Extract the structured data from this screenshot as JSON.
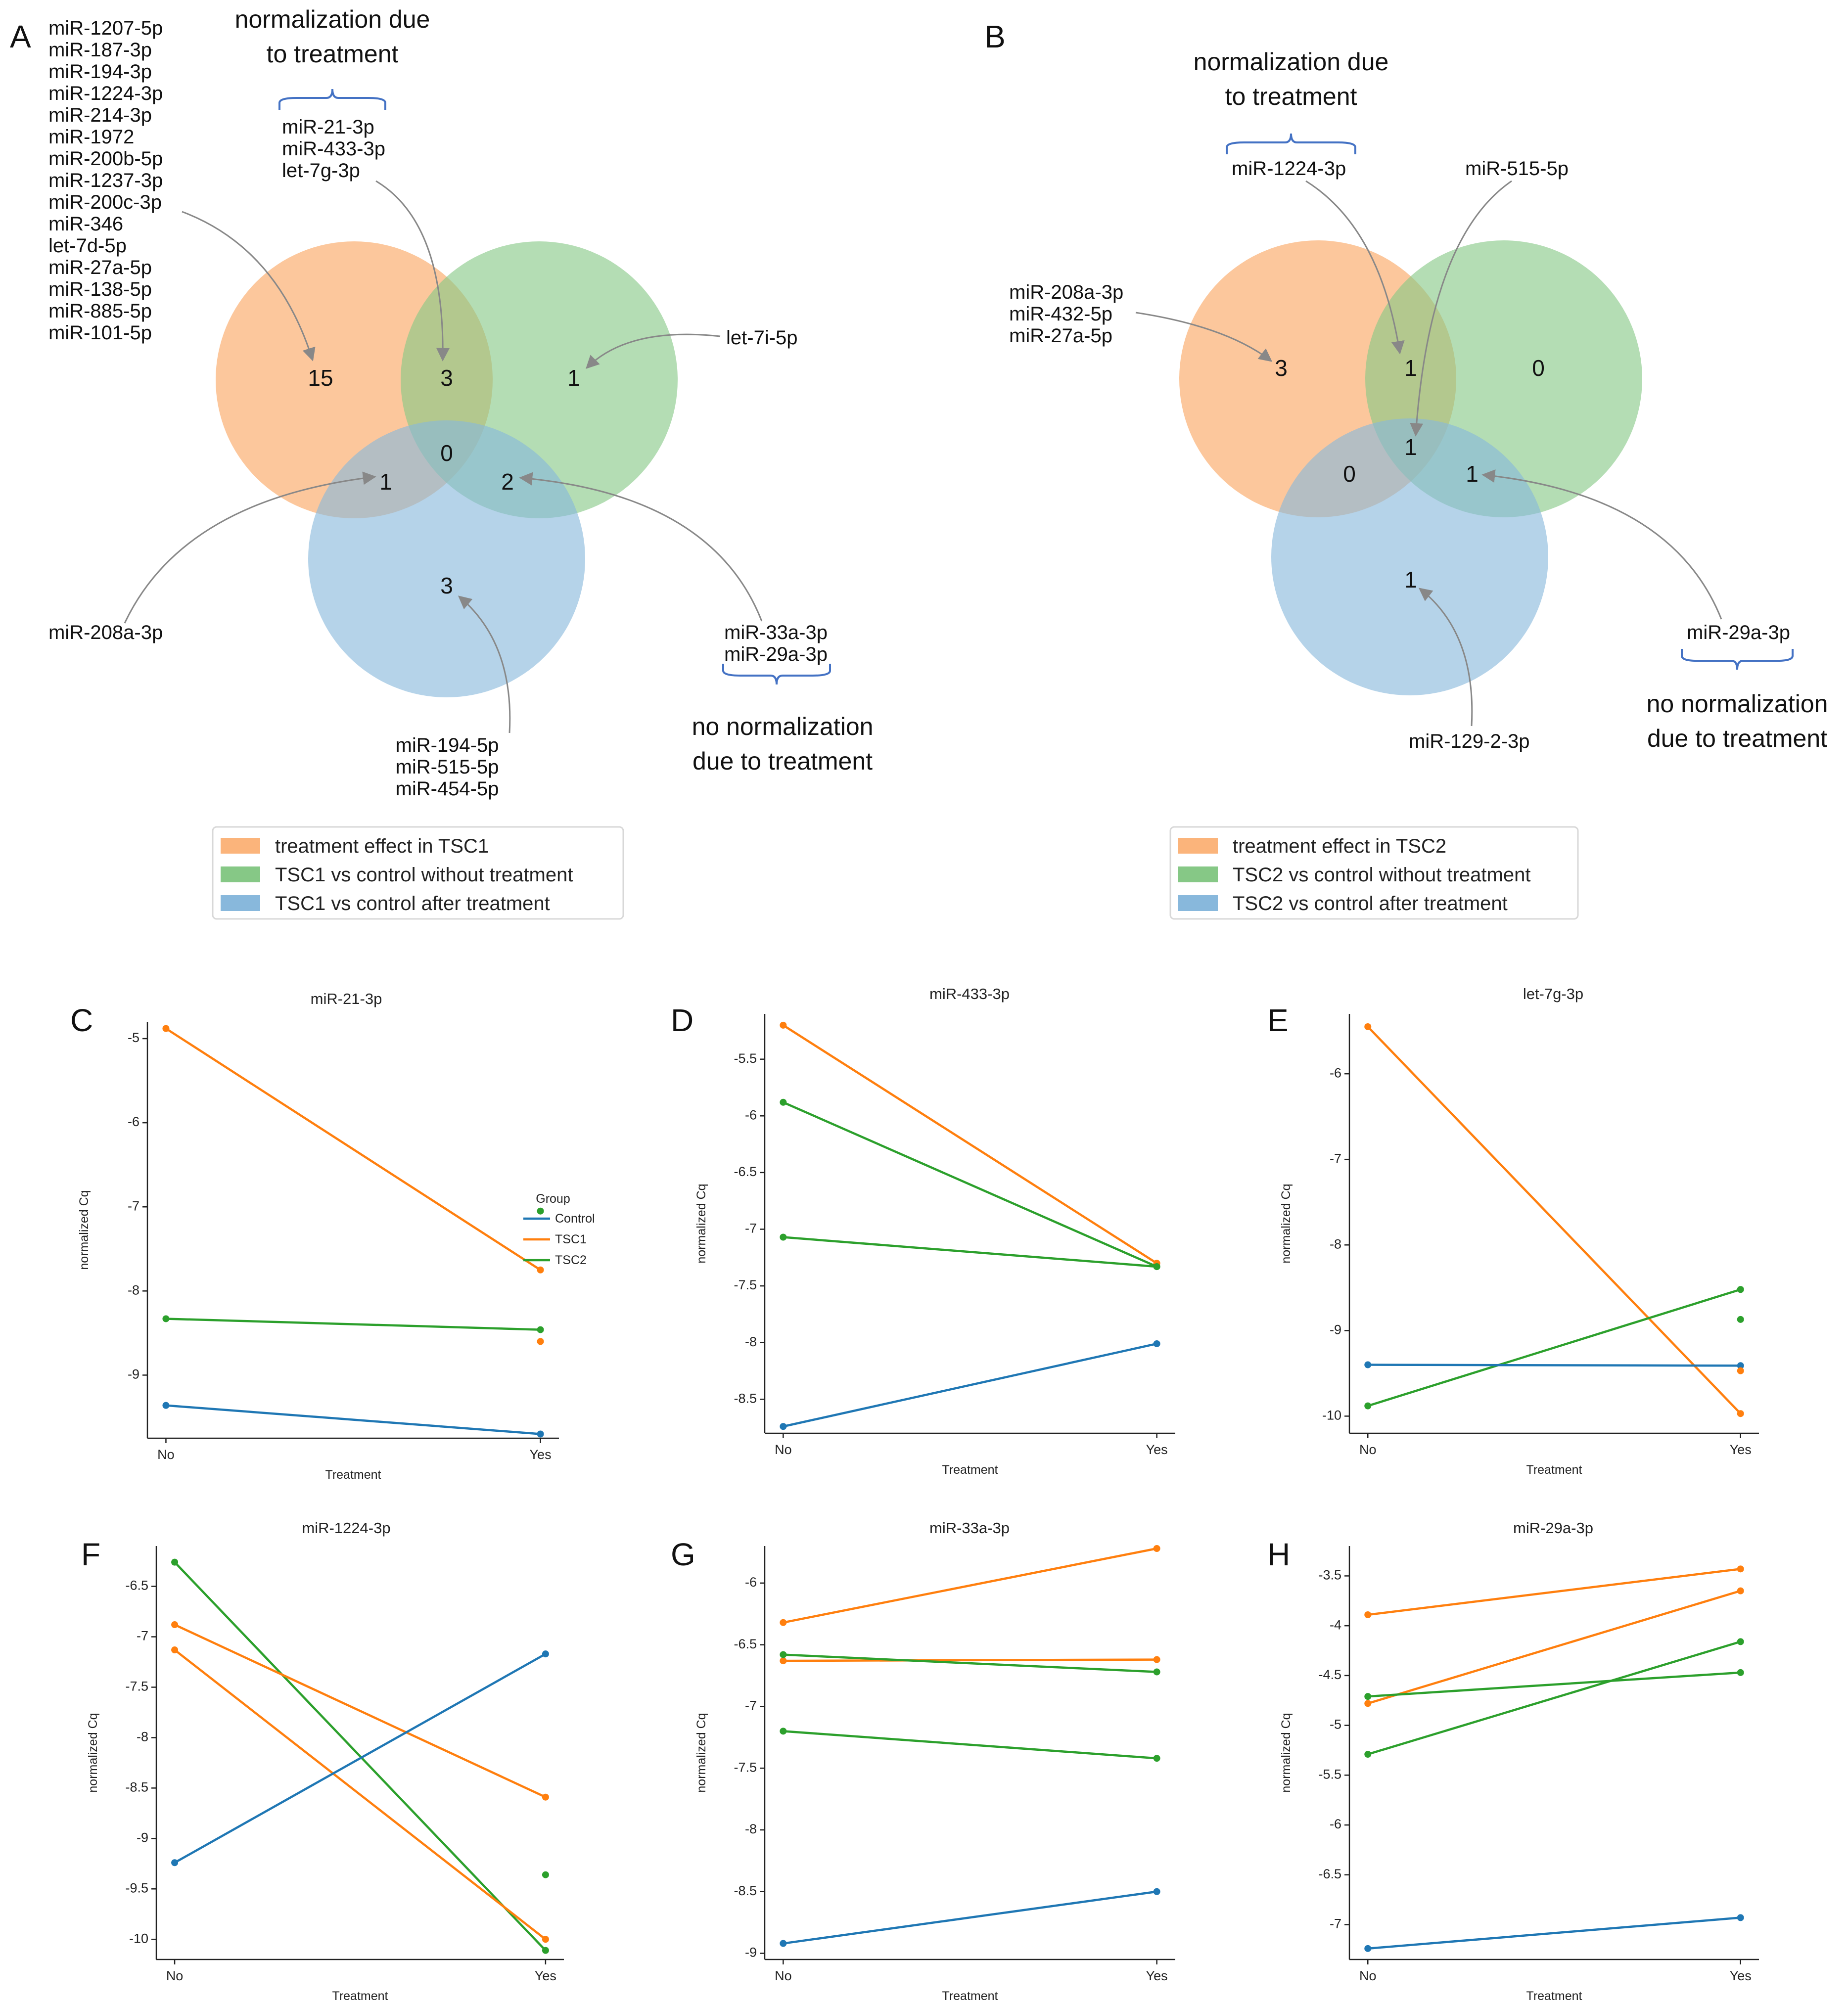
{
  "colors": {
    "orange": "#ff7f0e",
    "green": "#2ca02c",
    "blue": "#1f77b4",
    "venn_orange": "#fbb47b",
    "venn_green": "#86c886",
    "venn_blue": "#88b8dc",
    "brace": "#4472c4",
    "arrow": "#888888"
  },
  "venn_A": {
    "letter": "A",
    "normalization_label": [
      "normalization due",
      "to treatment"
    ],
    "no_normalization_label": [
      "no normalization",
      "due to treatment"
    ],
    "counts": {
      "tsc1_only": "15",
      "tsc1_green": "3",
      "green_only": "1",
      "center": "0",
      "tsc1_blue": "1",
      "green_blue": "2",
      "blue_only": "3"
    },
    "tsc1_only_list": [
      "miR-1207-5p",
      "miR-187-3p",
      "miR-194-3p",
      "miR-1224-3p",
      "miR-214-3p",
      "miR-1972",
      "miR-200b-5p",
      "miR-1237-3p",
      "miR-200c-3p",
      "miR-346",
      "let-7d-5p",
      "miR-27a-5p",
      "miR-138-5p",
      "miR-885-5p",
      "miR-101-5p"
    ],
    "tsc1_green_list": [
      "miR-21-3p",
      "miR-433-3p",
      "let-7g-3p"
    ],
    "green_only_list": [
      "let-7i-5p"
    ],
    "tsc1_blue_list": [
      "miR-208a-3p"
    ],
    "green_blue_list": [
      "miR-33a-3p",
      "miR-29a-3p"
    ],
    "blue_only_list": [
      "miR-194-5p",
      "miR-515-5p",
      "miR-454-5p"
    ],
    "legend": [
      "treatment effect in TSC1",
      "TSC1 vs control without treatment",
      "TSC1 vs control after treatment"
    ]
  },
  "venn_B": {
    "letter": "B",
    "normalization_label": [
      "normalization due",
      "to treatment"
    ],
    "no_normalization_label": [
      "no normalization",
      "due to treatment"
    ],
    "counts": {
      "tsc2_only": "3",
      "tsc2_green": "1",
      "green_only": "0",
      "center": "1",
      "tsc2_blue": "0",
      "green_blue": "1",
      "blue_only": "1"
    },
    "tsc2_only_list": [
      "miR-208a-3p",
      "miR-432-5p",
      "miR-27a-5p"
    ],
    "tsc2_green_list": [
      "miR-1224-3p"
    ],
    "center_list": [
      "miR-515-5p"
    ],
    "green_blue_list": [
      "miR-29a-3p"
    ],
    "blue_only_list": [
      "miR-129-2-3p"
    ],
    "legend": [
      "treatment effect in TSC2",
      "TSC2 vs control without treatment",
      "TSC2 vs control after treatment"
    ]
  },
  "chart_data": [
    {
      "panel": "C",
      "type": "line",
      "title": "miR-21-3p",
      "xlabel": "Treatment",
      "ylabel": "normalized Cq",
      "categories": [
        "No",
        "Yes"
      ],
      "ylim": [
        -9.75,
        -4.8
      ],
      "yticks": [
        -5,
        -6,
        -7,
        -8,
        -9
      ],
      "legend": {
        "title": "Group",
        "entries": [
          {
            "name": "Control",
            "color": "blue"
          },
          {
            "name": "TSC1",
            "color": "orange"
          },
          {
            "name": "TSC2",
            "color": "green"
          }
        ]
      },
      "series": [
        {
          "group": "TSC1",
          "color": "orange",
          "values": [
            -4.88,
            -7.75
          ]
        },
        {
          "group": "TSC2",
          "color": "green",
          "values": [
            -8.33,
            -8.46
          ]
        },
        {
          "group": "Control",
          "color": "blue",
          "values": [
            -9.36,
            -9.7
          ]
        }
      ],
      "points": [
        {
          "group": "TSC2",
          "color": "green",
          "x": "Yes",
          "y": -7.05
        },
        {
          "group": "TSC1",
          "color": "orange",
          "x": "Yes",
          "y": -8.6
        }
      ]
    },
    {
      "panel": "D",
      "type": "line",
      "title": "miR-433-3p",
      "xlabel": "Treatment",
      "ylabel": "normalized Cq",
      "categories": [
        "No",
        "Yes"
      ],
      "ylim": [
        -8.8,
        -5.1
      ],
      "yticks": [
        -5.5,
        -6.0,
        -6.5,
        -7.0,
        -7.5,
        -8.0,
        -8.5
      ],
      "series": [
        {
          "group": "TSC1",
          "color": "orange",
          "values": [
            -5.2,
            -7.3
          ]
        },
        {
          "group": "TSC2",
          "color": "green",
          "values": [
            -5.88,
            -7.33
          ]
        },
        {
          "group": "TSC2",
          "color": "green",
          "values": [
            -7.07,
            -7.33
          ]
        },
        {
          "group": "Control",
          "color": "blue",
          "values": [
            -8.74,
            -8.01
          ]
        }
      ],
      "points": []
    },
    {
      "panel": "E",
      "type": "line",
      "title": "let-7g-3p",
      "xlabel": "Treatment",
      "ylabel": "normalized Cq",
      "categories": [
        "No",
        "Yes"
      ],
      "ylim": [
        -10.2,
        -5.3
      ],
      "yticks": [
        -6,
        -7,
        -8,
        -9,
        -10
      ],
      "series": [
        {
          "group": "TSC1",
          "color": "orange",
          "values": [
            -5.45,
            -9.97
          ]
        },
        {
          "group": "TSC2",
          "color": "green",
          "values": [
            -9.88,
            -8.52
          ]
        },
        {
          "group": "Control",
          "color": "blue",
          "values": [
            -9.4,
            -9.41
          ]
        }
      ],
      "points": [
        {
          "group": "TSC2",
          "color": "green",
          "x": "Yes",
          "y": -8.87
        },
        {
          "group": "TSC1",
          "color": "orange",
          "x": "Yes",
          "y": -9.47
        }
      ]
    },
    {
      "panel": "F",
      "type": "line",
      "title": "miR-1224-3p",
      "xlabel": "Treatment",
      "ylabel": "normalized Cq",
      "categories": [
        "No",
        "Yes"
      ],
      "ylim": [
        -10.2,
        -6.1
      ],
      "yticks": [
        -6.5,
        -7.0,
        -7.5,
        -8.0,
        -8.5,
        -9.0,
        -9.5,
        -10.0
      ],
      "series": [
        {
          "group": "TSC2",
          "color": "green",
          "values": [
            -6.26,
            -10.11
          ]
        },
        {
          "group": "TSC1",
          "color": "orange",
          "values": [
            -6.88,
            -8.59
          ]
        },
        {
          "group": "TSC1",
          "color": "orange",
          "values": [
            -7.13,
            -10.0
          ]
        },
        {
          "group": "Control",
          "color": "blue",
          "values": [
            -9.24,
            -7.17
          ]
        }
      ],
      "points": [
        {
          "group": "TSC2",
          "color": "green",
          "x": "Yes",
          "y": -9.36
        }
      ]
    },
    {
      "panel": "G",
      "type": "line",
      "title": "miR-33a-3p",
      "xlabel": "Treatment",
      "ylabel": "normalized Cq",
      "categories": [
        "No",
        "Yes"
      ],
      "ylim": [
        -9.05,
        -5.7
      ],
      "yticks": [
        -6.0,
        -6.5,
        -7.0,
        -7.5,
        -8.0,
        -8.5,
        -9.0
      ],
      "series": [
        {
          "group": "TSC1",
          "color": "orange",
          "values": [
            -6.32,
            -5.72
          ]
        },
        {
          "group": "TSC1",
          "color": "orange",
          "values": [
            -6.63,
            -6.62
          ]
        },
        {
          "group": "TSC2",
          "color": "green",
          "values": [
            -6.58,
            -6.72
          ]
        },
        {
          "group": "TSC2",
          "color": "green",
          "values": [
            -7.2,
            -7.42
          ]
        },
        {
          "group": "Control",
          "color": "blue",
          "values": [
            -8.92,
            -8.5
          ]
        }
      ],
      "points": []
    },
    {
      "panel": "H",
      "type": "line",
      "title": "miR-29a-3p",
      "xlabel": "Treatment",
      "ylabel": "normalized Cq",
      "categories": [
        "No",
        "Yes"
      ],
      "ylim": [
        -7.35,
        -3.2
      ],
      "yticks": [
        -3.5,
        -4.0,
        -4.5,
        -5.0,
        -5.5,
        -6.0,
        -6.5,
        -7.0
      ],
      "series": [
        {
          "group": "TSC1",
          "color": "orange",
          "values": [
            -3.89,
            -3.43
          ]
        },
        {
          "group": "TSC1",
          "color": "orange",
          "values": [
            -4.78,
            -3.65
          ]
        },
        {
          "group": "TSC2",
          "color": "green",
          "values": [
            -4.71,
            -4.47
          ]
        },
        {
          "group": "TSC2",
          "color": "green",
          "values": [
            -5.29,
            -4.16
          ]
        },
        {
          "group": "Control",
          "color": "blue",
          "values": [
            -7.24,
            -6.93
          ]
        }
      ],
      "points": []
    }
  ]
}
